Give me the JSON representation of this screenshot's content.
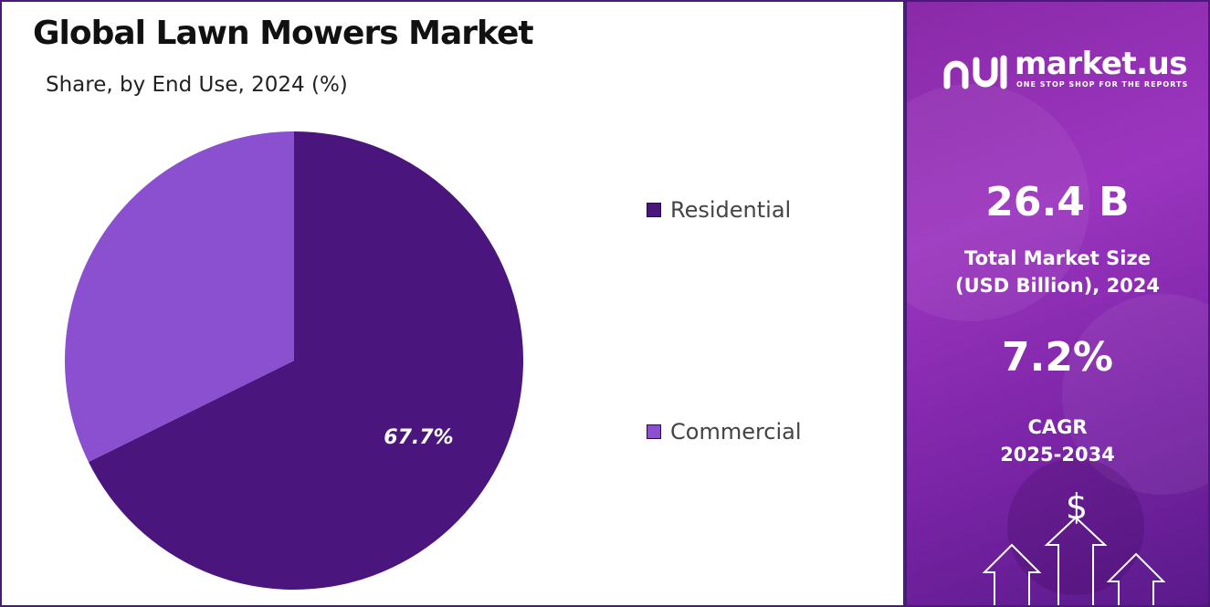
{
  "title": "Global Lawn Mowers Market",
  "subtitle": "Share, by End Use, 2024 (%)",
  "chart_data": {
    "type": "pie",
    "title": "Global Lawn Mowers Market",
    "subtitle": "Share, by End Use, 2024 (%)",
    "start_angle_deg": 0,
    "direction": "clockwise",
    "legend_position": "right",
    "slices": [
      {
        "label": "Residential",
        "value": 67.7,
        "color": "#4a167e",
        "data_label": "67.7%"
      },
      {
        "label": "Commercial",
        "value": 32.3,
        "color": "#8a50cf",
        "data_label": ""
      }
    ]
  },
  "sidebar": {
    "brand": "market.us",
    "tagline": "ONE STOP SHOP FOR THE REPORTS",
    "market_size_value": "26.4 B",
    "market_size_label_1": "Total Market Size",
    "market_size_label_2": "(USD Billion), 2024",
    "cagr_value": "7.2%",
    "cagr_label_1": "CAGR",
    "cagr_label_2": "2025-2034",
    "currency_symbol": "$",
    "decoration_icons": [
      "up-arrow-icon",
      "up-arrow-icon",
      "up-arrow-icon"
    ]
  }
}
